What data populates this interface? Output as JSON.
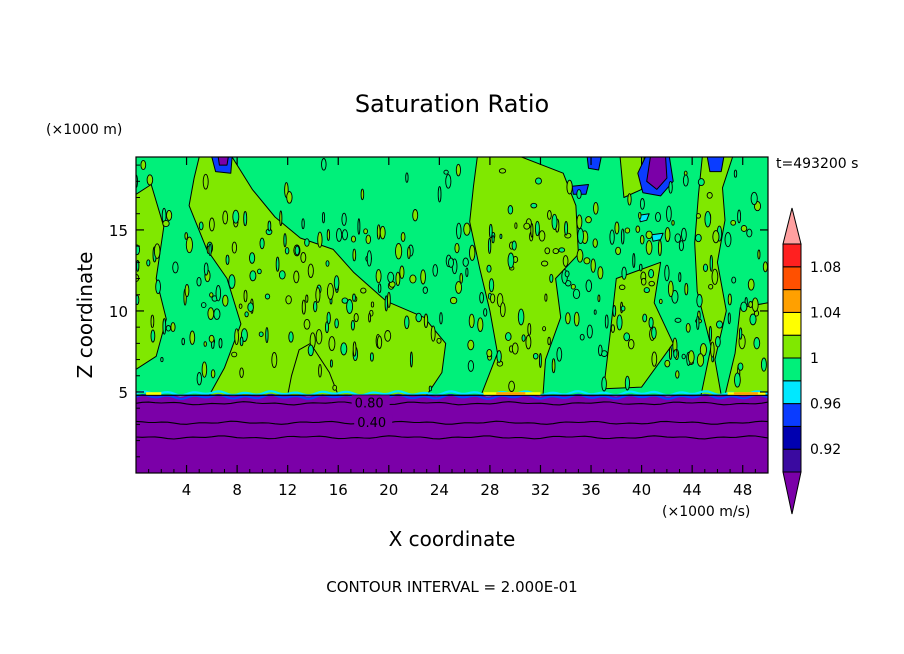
{
  "chart_data": {
    "type": "heatmap",
    "title": "Saturation Ratio",
    "xlabel": "X coordinate",
    "ylabel": "Z coordinate",
    "x_unit": "(×1000 m/s)",
    "y_unit": "(×1000 m)",
    "time_label": "t=493200 s",
    "footer": "CONTOUR INTERVAL = 2.000E-01",
    "xlim": [
      0,
      50
    ],
    "ylim": [
      0,
      19.5
    ],
    "x_ticks": [
      4,
      8,
      12,
      16,
      20,
      24,
      28,
      32,
      36,
      40,
      44,
      48
    ],
    "y_ticks": [
      5,
      10,
      15
    ],
    "inversion_height": 4.8,
    "contour_labels": [
      {
        "text": "0.80",
        "x": 17.3,
        "y": 4.3
      },
      {
        "text": "0.40",
        "x": 17.5,
        "y": 3.1
      }
    ],
    "colorbar": {
      "ticks": [
        1.08,
        1.04,
        1,
        0.96,
        0.92
      ],
      "levels": [
        {
          "lo": null,
          "hi": 0.9,
          "color": "#7b00a8"
        },
        {
          "lo": 0.9,
          "hi": 0.92,
          "color": "#3a0aa0"
        },
        {
          "lo": 0.92,
          "hi": 0.94,
          "color": "#0000b0"
        },
        {
          "lo": 0.94,
          "hi": 0.96,
          "color": "#0a3cff"
        },
        {
          "lo": 0.96,
          "hi": 0.98,
          "color": "#00e8ff"
        },
        {
          "lo": 0.98,
          "hi": 1.0,
          "color": "#00f07a"
        },
        {
          "lo": 1.0,
          "hi": 1.02,
          "color": "#80e800"
        },
        {
          "lo": 1.02,
          "hi": 1.04,
          "color": "#ffff00"
        },
        {
          "lo": 1.04,
          "hi": 1.06,
          "color": "#ffa000"
        },
        {
          "lo": 1.06,
          "hi": 1.08,
          "color": "#ff5000"
        },
        {
          "lo": 1.08,
          "hi": 1.1,
          "color": "#ff2020"
        },
        {
          "lo": 1.1,
          "hi": null,
          "color": "#ffa0a0"
        }
      ]
    },
    "regions": [
      {
        "level": 1.0,
        "color": "#80e800",
        "polygon": [
          [
            5.0,
            19.5
          ],
          [
            7.6,
            19.5
          ],
          [
            9.2,
            17.5
          ],
          [
            11.0,
            15.8
          ],
          [
            13.0,
            14.5
          ],
          [
            15.6,
            13.8
          ],
          [
            17.2,
            12.4
          ],
          [
            19.8,
            10.6
          ],
          [
            22.8,
            9.6
          ],
          [
            24.5,
            8.0
          ],
          [
            24.2,
            6.2
          ],
          [
            23.0,
            4.8
          ],
          [
            5.8,
            4.8
          ],
          [
            7.0,
            6.5
          ],
          [
            8.3,
            9.2
          ],
          [
            7.2,
            12.0
          ],
          [
            5.6,
            13.8
          ],
          [
            4.2,
            16.5
          ],
          [
            4.6,
            18.2
          ]
        ]
      },
      {
        "level": 1.0,
        "color": "#80e800",
        "polygon": [
          [
            27.0,
            19.5
          ],
          [
            30.5,
            19.5
          ],
          [
            33.8,
            18.5
          ],
          [
            34.8,
            16.5
          ],
          [
            35.0,
            13.5
          ],
          [
            33.2,
            12.0
          ],
          [
            33.6,
            9.6
          ],
          [
            32.4,
            7.0
          ],
          [
            32.2,
            4.8
          ],
          [
            27.3,
            4.8
          ],
          [
            28.6,
            7.4
          ],
          [
            28.0,
            10.0
          ],
          [
            27.2,
            12.6
          ],
          [
            26.4,
            15.5
          ],
          [
            26.7,
            17.7
          ]
        ]
      },
      {
        "level": 1.0,
        "color": "#80e800",
        "polygon": [
          [
            12.0,
            4.8
          ],
          [
            16.0,
            4.8
          ],
          [
            15.3,
            6.2
          ],
          [
            13.8,
            8.0
          ],
          [
            12.9,
            7.6
          ],
          [
            12.3,
            6.0
          ]
        ]
      },
      {
        "level": 1.0,
        "color": "#80e800",
        "polygon": [
          [
            0.0,
            17.2
          ],
          [
            1.2,
            17.8
          ],
          [
            2.2,
            15.2
          ],
          [
            1.6,
            12.0
          ],
          [
            2.4,
            9.5
          ],
          [
            1.6,
            7.2
          ],
          [
            0.0,
            6.4
          ]
        ]
      },
      {
        "level": 1.0,
        "color": "#80e800",
        "polygon": [
          [
            44.8,
            19.5
          ],
          [
            47.2,
            19.5
          ],
          [
            46.4,
            17.6
          ],
          [
            46.6,
            15.6
          ],
          [
            46.0,
            13.0
          ],
          [
            46.7,
            10.0
          ],
          [
            45.8,
            7.0
          ],
          [
            46.3,
            4.8
          ],
          [
            44.7,
            4.8
          ],
          [
            45.5,
            7.8
          ],
          [
            44.4,
            11.2
          ],
          [
            44.2,
            14.2
          ],
          [
            44.5,
            17.2
          ]
        ]
      },
      {
        "level": 1.0,
        "color": "#80e800",
        "polygon": [
          [
            47.8,
            10.2
          ],
          [
            50.0,
            10.5
          ],
          [
            50.0,
            4.8
          ],
          [
            46.6,
            4.8
          ],
          [
            47.4,
            7.4
          ]
        ]
      },
      {
        "level": 1.0,
        "color": "#80e800",
        "polygon": [
          [
            38.0,
            12.0
          ],
          [
            41.5,
            13.0
          ],
          [
            41.0,
            10.5
          ],
          [
            42.5,
            8.0
          ],
          [
            40.0,
            5.3
          ],
          [
            37.0,
            5.2
          ],
          [
            37.5,
            8.5
          ]
        ]
      },
      {
        "level": 1.0,
        "color": "#80e800",
        "polygon": [
          [
            38.3,
            19.5
          ],
          [
            40.2,
            19.5
          ],
          [
            40.0,
            17.5
          ],
          [
            38.6,
            17.0
          ]
        ]
      },
      {
        "level": 0.94,
        "color": "#0a3cff",
        "polygon": [
          [
            6.0,
            19.5
          ],
          [
            7.6,
            19.5
          ],
          [
            7.5,
            18.5
          ],
          [
            6.3,
            18.6
          ]
        ]
      },
      {
        "level": 0.9,
        "color": "#7b00a8",
        "polygon": [
          [
            6.5,
            19.5
          ],
          [
            7.3,
            19.5
          ],
          [
            7.2,
            19.0
          ],
          [
            6.6,
            19.0
          ]
        ]
      },
      {
        "level": 0.94,
        "color": "#0a3cff",
        "polygon": [
          [
            35.7,
            19.5
          ],
          [
            36.8,
            19.5
          ],
          [
            36.6,
            18.7
          ],
          [
            35.8,
            18.8
          ]
        ]
      },
      {
        "level": 0.94,
        "color": "#0a3cff",
        "polygon": [
          [
            40.3,
            19.5
          ],
          [
            42.2,
            19.5
          ],
          [
            42.5,
            18.0
          ],
          [
            41.5,
            17.1
          ],
          [
            40.1,
            17.3
          ],
          [
            39.7,
            18.5
          ]
        ]
      },
      {
        "level": 0.9,
        "color": "#7b00a8",
        "polygon": [
          [
            40.7,
            19.5
          ],
          [
            41.9,
            19.5
          ],
          [
            42.0,
            18.2
          ],
          [
            41.2,
            17.5
          ],
          [
            40.4,
            18.0
          ]
        ]
      },
      {
        "level": 0.94,
        "color": "#0a3cff",
        "polygon": [
          [
            45.2,
            19.5
          ],
          [
            46.5,
            19.5
          ],
          [
            46.3,
            18.6
          ],
          [
            45.4,
            18.6
          ]
        ]
      },
      {
        "level": 0.94,
        "color": "#0a3cff",
        "polygon": [
          [
            34.5,
            17.7
          ],
          [
            35.8,
            17.8
          ],
          [
            35.6,
            17.2
          ],
          [
            34.6,
            17.2
          ]
        ]
      },
      {
        "level": 0.96,
        "color": "#00e8ff",
        "polygon": [
          [
            39.8,
            15.9
          ],
          [
            40.6,
            16.0
          ],
          [
            40.4,
            15.6
          ],
          [
            39.9,
            15.5
          ]
        ]
      },
      {
        "level": 0.96,
        "color": "#00e8ff",
        "polygon": [
          [
            40.8,
            14.7
          ],
          [
            41.7,
            14.8
          ],
          [
            41.5,
            14.4
          ],
          [
            40.9,
            14.3
          ]
        ]
      }
    ],
    "surface_warm": [
      {
        "x0": 0.8,
        "x1": 2.0,
        "color": "#ffff00"
      },
      {
        "x0": 27.5,
        "x1": 32.0,
        "color": "#ffff00"
      },
      {
        "x0": 28.5,
        "x1": 30.8,
        "color": "#ffa000"
      },
      {
        "x0": 46.8,
        "x1": 49.8,
        "color": "#ffff00"
      },
      {
        "x0": 47.3,
        "x1": 49.2,
        "color": "#ffa000"
      }
    ],
    "lower_isolines": [
      4.3,
      3.1,
      2.2
    ]
  }
}
